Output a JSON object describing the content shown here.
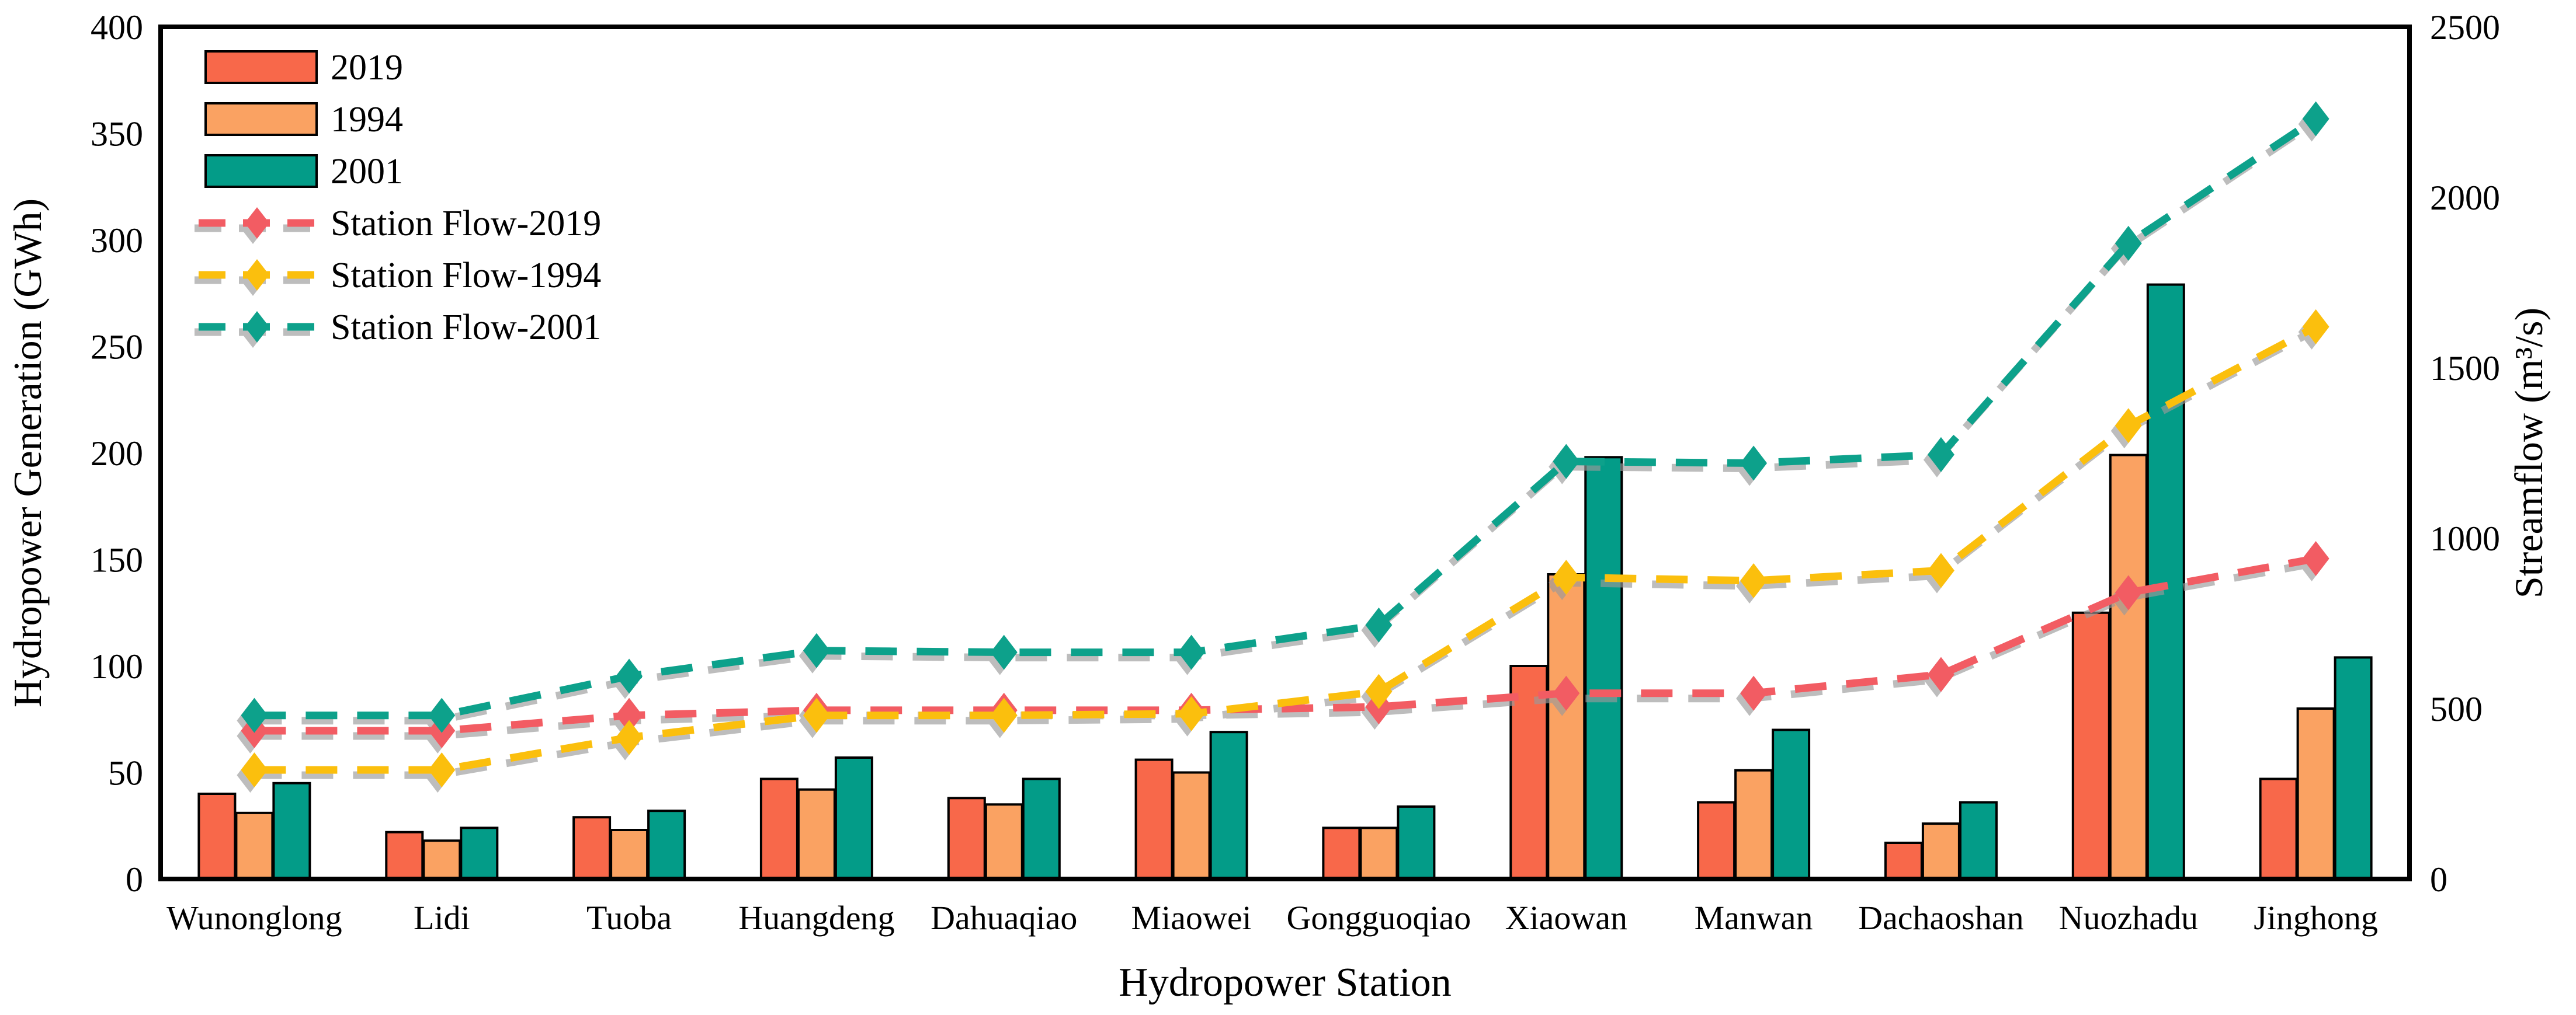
{
  "chart_data": {
    "type": "bar+line",
    "title": "",
    "xlabel": "Hydropower Station",
    "ylabel_left": "Hydropower Generation (GWh)",
    "ylabel_right": "Streamflow (m³/s)",
    "grid": false,
    "legend_position": "top-left",
    "categories": [
      "Wunonglong",
      "Lidi",
      "Tuoba",
      "Huangdeng",
      "Dahuaqiao",
      "Miaowei",
      "Gongguoqiao",
      "Xiaowan",
      "Manwan",
      "Dachaoshan",
      "Nuozhadu",
      "Jinghong"
    ],
    "left_axis": {
      "min": 0,
      "max": 400,
      "tick_step": 50,
      "ticks": [
        0,
        50,
        100,
        150,
        200,
        250,
        300,
        350,
        400
      ]
    },
    "right_axis": {
      "min": 0,
      "max": 2500,
      "tick_step": 500,
      "ticks": [
        0,
        500,
        1000,
        1500,
        2000,
        2500
      ]
    },
    "bar_series": [
      {
        "name": "2019",
        "color": "#F8684A",
        "values": [
          40,
          22,
          29,
          47,
          38,
          56,
          24,
          100,
          36,
          17,
          125,
          47
        ]
      },
      {
        "name": "1994",
        "color": "#FAA262",
        "values": [
          31,
          18,
          23,
          42,
          35,
          50,
          24,
          143,
          51,
          26,
          199,
          80
        ]
      },
      {
        "name": "2001",
        "color": "#039C88",
        "values": [
          45,
          24,
          32,
          57,
          47,
          69,
          34,
          198,
          70,
          36,
          279,
          104
        ]
      }
    ],
    "line_series": [
      {
        "name": "Station Flow-2019",
        "color": "#F25B64",
        "values": [
          435,
          435,
          480,
          495,
          495,
          495,
          505,
          545,
          545,
          600,
          840,
          940
        ]
      },
      {
        "name": "Station Flow-1994",
        "color": "#FBBF0A",
        "values": [
          320,
          320,
          415,
          480,
          480,
          485,
          550,
          885,
          875,
          905,
          1330,
          1620
        ]
      },
      {
        "name": "Station Flow-2001",
        "color": "#0DA18B",
        "values": [
          480,
          480,
          595,
          670,
          665,
          665,
          745,
          1225,
          1220,
          1245,
          1865,
          2230
        ]
      }
    ]
  }
}
